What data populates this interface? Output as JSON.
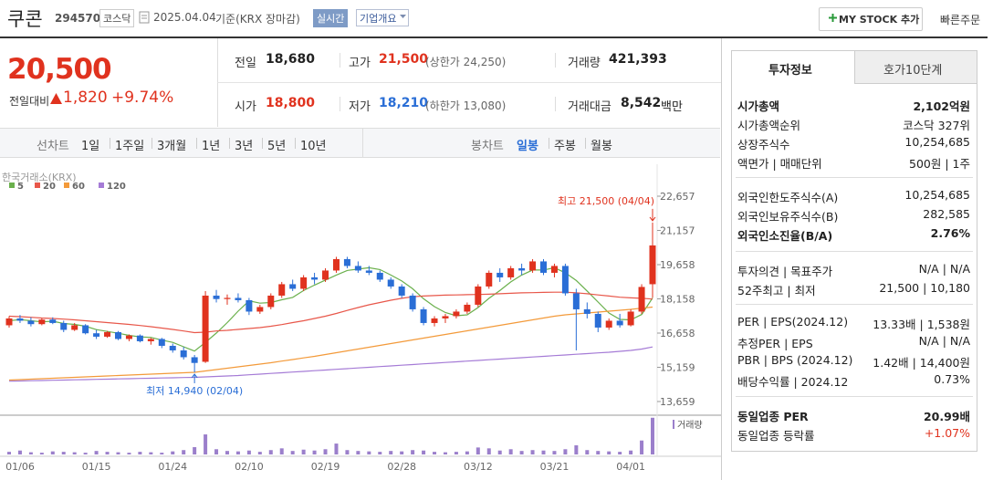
{
  "header": {
    "name": "쿠콘",
    "code": "294570",
    "market": "코스닥",
    "date": "2025.04.04",
    "basis": "기준(KRX 장마감)",
    "realtime": "실시간",
    "company": "기업개요",
    "my_stock": "MY STOCK 추가",
    "quick_order": "빠른주문"
  },
  "price": {
    "current": "20,500",
    "change_label": "전일대비",
    "change": "1,820",
    "change_rate": "+9.74%"
  },
  "stats": [
    {
      "label": "전일",
      "value": "18,680"
    },
    {
      "label": "고가",
      "value": "21,500",
      "note": "(상한가 24,250)"
    },
    {
      "label": "거래량",
      "value": "421,393"
    },
    {
      "label": "시가",
      "value": "18,800"
    },
    {
      "label": "저가",
      "value": "18,210",
      "note": "(하한가 13,080)"
    },
    {
      "label": "거래대금",
      "value": "8,542",
      "unit": "백만"
    }
  ],
  "chart_tabs": {
    "line_label": "선차트",
    "line_periods": [
      "1일",
      "1주일",
      "3개월",
      "1년",
      "3년",
      "5년",
      "10년"
    ],
    "candle_label": "봉차트",
    "candle_periods": [
      "일봉",
      "주봉",
      "월봉"
    ]
  },
  "chart_data": {
    "type": "candlestick",
    "source": "한국거래소(KRX)",
    "up_color": "#e0321e",
    "down_color": "#2a6ed6",
    "categories": [
      "01/06",
      null,
      null,
      null,
      null,
      null,
      null,
      "01/15",
      null,
      null,
      null,
      null,
      null,
      null,
      "01/24",
      null,
      null,
      null,
      null,
      null,
      null,
      "02/10",
      null,
      null,
      null,
      null,
      null,
      null,
      "02/19",
      null,
      null,
      null,
      null,
      null,
      null,
      "02/28",
      null,
      null,
      null,
      null,
      null,
      null,
      "03/12",
      null,
      null,
      null,
      null,
      null,
      null,
      "03/21",
      null,
      null,
      null,
      null,
      null,
      null,
      "04/01",
      null,
      null,
      null
    ],
    "ohlc": [
      [
        17000,
        17400,
        16900,
        17300
      ],
      [
        17300,
        17450,
        17100,
        17200
      ],
      [
        17200,
        17350,
        16950,
        17050
      ],
      [
        17050,
        17300,
        17000,
        17250
      ],
      [
        17250,
        17350,
        17050,
        17100
      ],
      [
        17100,
        17200,
        16700,
        16800
      ],
      [
        16800,
        17100,
        16750,
        17000
      ],
      [
        17000,
        17050,
        16600,
        16650
      ],
      [
        16650,
        16800,
        16400,
        16500
      ],
      [
        16500,
        16750,
        16450,
        16700
      ],
      [
        16700,
        16750,
        16350,
        16400
      ],
      [
        16400,
        16600,
        16300,
        16550
      ],
      [
        16550,
        16600,
        16250,
        16300
      ],
      [
        16300,
        16450,
        16150,
        16400
      ],
      [
        16400,
        16450,
        16000,
        16100
      ],
      [
        16100,
        16200,
        15800,
        15900
      ],
      [
        15900,
        16050,
        15500,
        15600
      ],
      [
        15600,
        15700,
        14940,
        15350
      ],
      [
        15400,
        18500,
        15350,
        18300
      ],
      [
        18300,
        18550,
        18000,
        18150
      ],
      [
        18150,
        18350,
        17900,
        18200
      ],
      [
        18200,
        18400,
        18000,
        18100
      ],
      [
        18100,
        18200,
        17450,
        17600
      ],
      [
        17600,
        17900,
        17500,
        17800
      ],
      [
        17800,
        18400,
        17700,
        18300
      ],
      [
        18300,
        18900,
        18200,
        18800
      ],
      [
        18800,
        19000,
        18500,
        18600
      ],
      [
        18600,
        19200,
        18500,
        19100
      ],
      [
        19100,
        19300,
        18800,
        19000
      ],
      [
        19000,
        19500,
        18900,
        19400
      ],
      [
        19400,
        20000,
        19300,
        19900
      ],
      [
        19900,
        20000,
        19500,
        19600
      ],
      [
        19600,
        19800,
        19300,
        19400
      ],
      [
        19400,
        19600,
        19200,
        19300
      ],
      [
        19300,
        19400,
        18900,
        19000
      ],
      [
        19000,
        19100,
        18600,
        18700
      ],
      [
        18700,
        18800,
        18200,
        18300
      ],
      [
        18300,
        18400,
        17600,
        17700
      ],
      [
        17700,
        17800,
        17000,
        17100
      ],
      [
        17100,
        17400,
        16950,
        17300
      ],
      [
        17300,
        17500,
        17100,
        17400
      ],
      [
        17400,
        17700,
        17300,
        17600
      ],
      [
        17600,
        18000,
        17500,
        17900
      ],
      [
        17900,
        18800,
        17800,
        18700
      ],
      [
        18700,
        19400,
        18600,
        19300
      ],
      [
        19300,
        19500,
        18900,
        19100
      ],
      [
        19100,
        19600,
        19000,
        19500
      ],
      [
        19500,
        19700,
        19200,
        19400
      ],
      [
        19400,
        19900,
        19300,
        19800
      ],
      [
        19800,
        19900,
        19200,
        19300
      ],
      [
        19300,
        19700,
        19100,
        19600
      ],
      [
        19600,
        19700,
        18300,
        18400
      ],
      [
        18400,
        18600,
        15900,
        17700
      ],
      [
        17700,
        18000,
        17300,
        17500
      ],
      [
        17500,
        17600,
        16700,
        16900
      ],
      [
        16900,
        17300,
        16800,
        17200
      ],
      [
        17200,
        17500,
        16900,
        17000
      ],
      [
        17000,
        17700,
        16950,
        17600
      ],
      [
        17600,
        18800,
        17500,
        18680
      ],
      [
        18800,
        21500,
        18210,
        20500
      ]
    ],
    "ma": [
      {
        "name": "5",
        "color": "#6ab04c",
        "values": [
          17200,
          17250,
          17200,
          17150,
          17180,
          17080,
          17040,
          16960,
          16810,
          16730,
          16650,
          16560,
          16490,
          16470,
          16350,
          16250,
          16060,
          15870,
          16250,
          16660,
          17120,
          17620,
          18070,
          17970,
          18000,
          18120,
          18220,
          18520,
          18760,
          18980,
          19200,
          19400,
          19460,
          19520,
          19440,
          19200,
          18940,
          18600,
          18160,
          17820,
          17560,
          17420,
          17460,
          17780,
          18180,
          18520,
          18900,
          19200,
          19420,
          19420,
          19520,
          19300,
          18960,
          18500,
          18020,
          17540,
          17260,
          17240,
          17476,
          18196
        ]
      },
      {
        "name": "20",
        "color": "#e8574a",
        "values": [
          17400,
          17380,
          17350,
          17320,
          17300,
          17270,
          17240,
          17200,
          17160,
          17120,
          17080,
          17040,
          16990,
          16940,
          16880,
          16820,
          16750,
          16680,
          16700,
          16750,
          16780,
          16820,
          16860,
          16900,
          16960,
          17030,
          17120,
          17200,
          17300,
          17400,
          17520,
          17650,
          17780,
          17900,
          18000,
          18100,
          18180,
          18250,
          18280,
          18300,
          18320,
          18330,
          18340,
          18350,
          18360,
          18380,
          18400,
          18420,
          18430,
          18440,
          18450,
          18450,
          18420,
          18380,
          18330,
          18280,
          18230,
          18200,
          18180,
          18150
        ]
      },
      {
        "name": "60",
        "color": "#f39a3a",
        "values": [
          14600,
          14620,
          14640,
          14660,
          14680,
          14700,
          14720,
          14740,
          14760,
          14780,
          14800,
          14820,
          14840,
          14860,
          14880,
          14900,
          14920,
          14940,
          15000,
          15060,
          15120,
          15180,
          15240,
          15300,
          15360,
          15430,
          15500,
          15570,
          15640,
          15720,
          15800,
          15880,
          15960,
          16040,
          16120,
          16200,
          16280,
          16360,
          16440,
          16520,
          16600,
          16680,
          16760,
          16840,
          16920,
          17000,
          17080,
          17160,
          17240,
          17320,
          17400,
          17460,
          17500,
          17540,
          17580,
          17620,
          17660,
          17700,
          17750,
          17800
        ]
      },
      {
        "name": "120",
        "color": "#a57bd6",
        "values": [
          14550,
          14560,
          14570,
          14580,
          14590,
          14600,
          14610,
          14620,
          14630,
          14640,
          14650,
          14660,
          14670,
          14680,
          14690,
          14700,
          14710,
          14720,
          14740,
          14760,
          14780,
          14800,
          14830,
          14860,
          14890,
          14920,
          14950,
          14980,
          15010,
          15040,
          15070,
          15100,
          15130,
          15160,
          15190,
          15220,
          15250,
          15280,
          15310,
          15340,
          15370,
          15400,
          15430,
          15460,
          15490,
          15520,
          15550,
          15580,
          15610,
          15640,
          15670,
          15700,
          15730,
          15760,
          15790,
          15820,
          15860,
          15900,
          15960,
          16050
        ]
      }
    ],
    "volume": {
      "name": "거래량",
      "color": "#9b7fcb",
      "values": [
        30000,
        45000,
        25000,
        20000,
        35000,
        30000,
        25000,
        20000,
        40000,
        30000,
        25000,
        20000,
        30000,
        25000,
        20000,
        35000,
        50000,
        84000,
        230000,
        60000,
        40000,
        35000,
        45000,
        30000,
        50000,
        70000,
        40000,
        55000,
        45000,
        60000,
        125000,
        50000,
        40000,
        35000,
        30000,
        40000,
        35000,
        50000,
        45000,
        30000,
        25000,
        30000,
        35000,
        80000,
        70000,
        45000,
        60000,
        40000,
        50000,
        45000,
        40000,
        60000,
        105000,
        50000,
        40000,
        35000,
        30000,
        45000,
        160000,
        421393
      ]
    },
    "volume_ylim": [
      0,
      440000
    ],
    "ylim": [
      13259,
      23057
    ],
    "yticks": [
      {
        "value": 22657,
        "label": "22,657"
      },
      {
        "value": 21157,
        "label": "21,157"
      },
      {
        "value": 19658,
        "label": "19,658"
      },
      {
        "value": 18158,
        "label": "18,158"
      },
      {
        "value": 16658,
        "label": "16,658"
      },
      {
        "value": 15159,
        "label": "15,159"
      },
      {
        "value": 13659,
        "label": "13,659"
      }
    ],
    "annotations": [
      {
        "text": "최고 21,500 (04/04)",
        "value": 21500,
        "color": "#e0321e"
      },
      {
        "text": "최저 14,940 (02/04)",
        "value": 14940,
        "color": "#2a6ed6"
      }
    ]
  },
  "info_panel": {
    "tabs": [
      "투자정보",
      "호가10단계"
    ],
    "sections": [
      [
        {
          "label": "시가총액",
          "value": "2,102억원"
        },
        {
          "label": "시가총액순위",
          "value": "코스닥 327위"
        },
        {
          "label": "상장주식수",
          "value": "10,254,685"
        },
        {
          "label": "액면가 | 매매단위",
          "value": "500원 | 1주"
        }
      ],
      [
        {
          "label": "외국인한도주식수(A)",
          "value": "10,254,685"
        },
        {
          "label": "외국인보유주식수(B)",
          "value": "282,585"
        },
        {
          "label": "외국인소진율(B/A)",
          "value": "2.76%"
        }
      ],
      [
        {
          "label": "투자의견 | 목표주가",
          "value": "N/A | N/A"
        },
        {
          "label": "52주최고 | 최저",
          "value": "21,500 | 10,180"
        }
      ],
      [
        {
          "label": "PER | EPS(2024.12)",
          "value": "13.33배 | 1,538원"
        },
        {
          "label": "추정PER | EPS",
          "value": "N/A | N/A"
        },
        {
          "label": "PBR | BPS (2024.12)",
          "value": "1.42배 | 14,400원"
        },
        {
          "label": "배당수익률 | 2024.12",
          "value": "0.73%"
        }
      ],
      [
        {
          "label": "동일업종 PER",
          "value": "20.99배"
        },
        {
          "label": "동일업종 등락률",
          "value": "+1.07%"
        }
      ]
    ]
  }
}
